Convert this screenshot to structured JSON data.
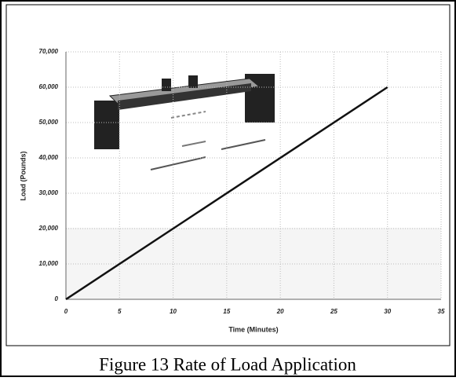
{
  "chart_data": {
    "type": "line",
    "caption": "Figure 13 Rate of Load Application",
    "xlabel": "Time (Minutes)",
    "ylabel": "Load (Pounds)",
    "x": [
      0,
      30
    ],
    "series": [
      {
        "color": "#111111",
        "values": [
          0,
          60000
        ]
      }
    ],
    "xlim": [
      0,
      35
    ],
    "xticks": [
      0,
      5,
      10,
      15,
      20,
      25,
      30,
      35
    ],
    "ylim": [
      0,
      70000
    ],
    "yticks": [
      0,
      {
        "value": 10000,
        "label": "10,000"
      },
      {
        "value": 20000,
        "label": "20,000"
      },
      {
        "value": 30000,
        "label": "30,000"
      },
      {
        "value": 40000,
        "label": "40,000"
      },
      {
        "value": 50000,
        "label": "50,000"
      },
      {
        "value": 60000,
        "label": "60,000"
      },
      {
        "value": 70000,
        "label": "70,000"
      }
    ],
    "grid": true
  }
}
